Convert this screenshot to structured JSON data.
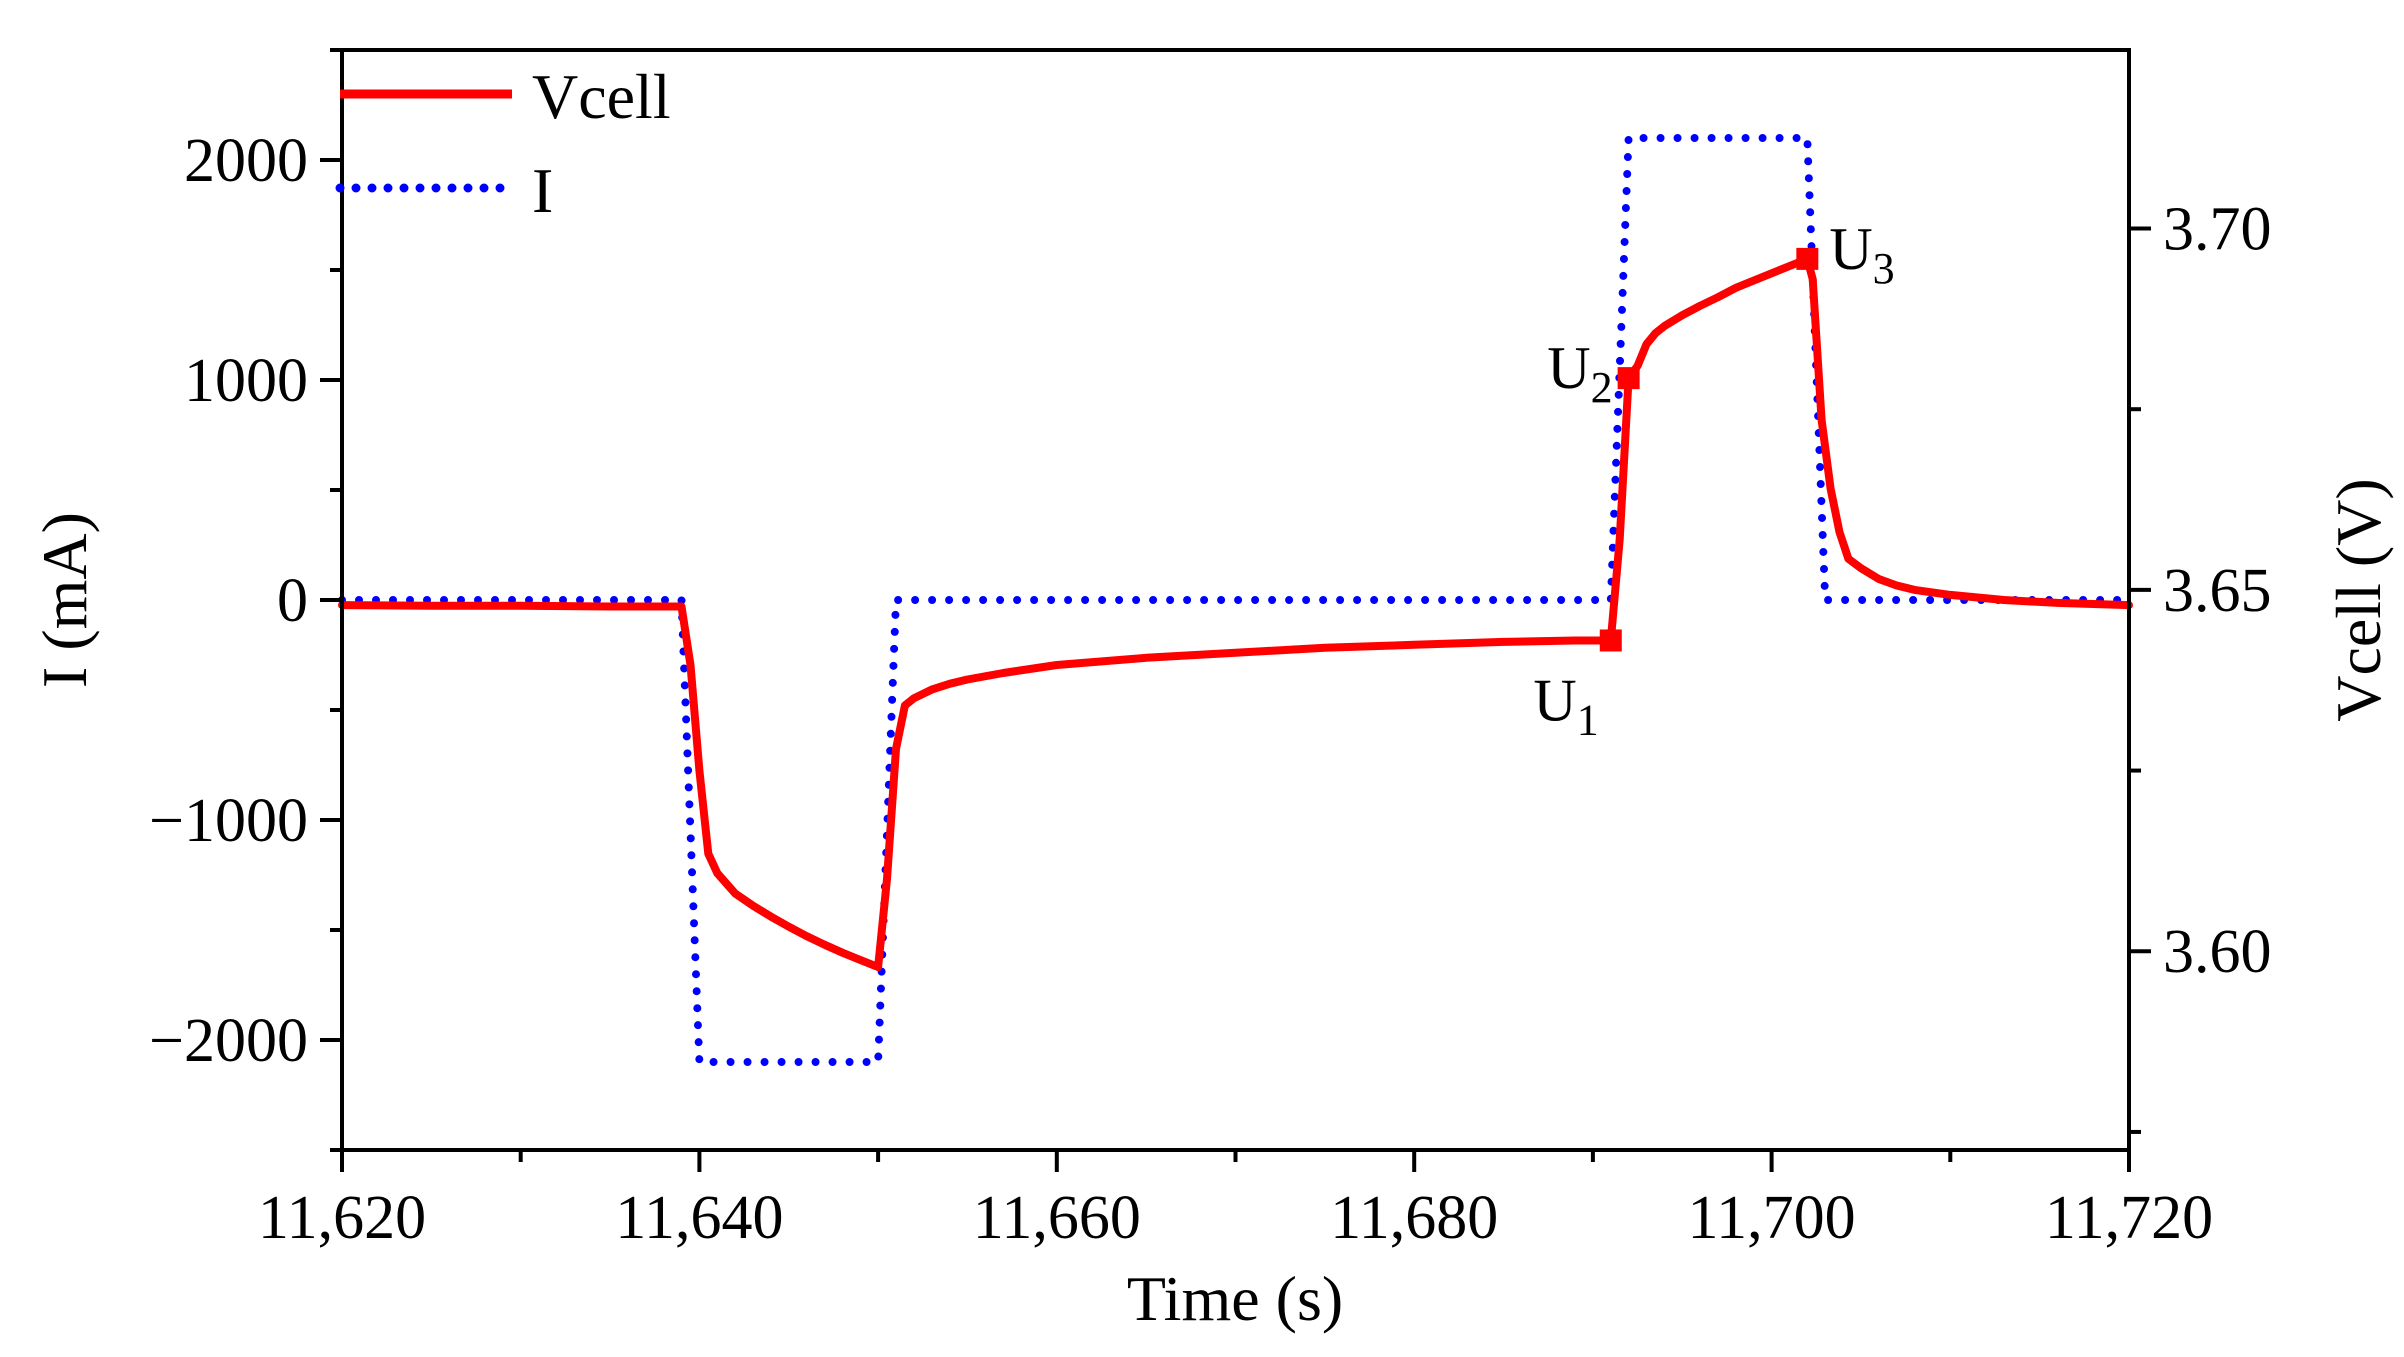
{
  "chart_data": {
    "type": "line",
    "title": "",
    "xlabel": "Time (s)",
    "ylabel_left": "I (mA)",
    "ylabel_right": "Vcell (V)",
    "xlim": [
      11620,
      11720
    ],
    "ylim_left": [
      -2500,
      2500
    ],
    "ylim_right": [
      3.5725,
      3.7247
    ],
    "x_ticks": [
      11620,
      11640,
      11660,
      11680,
      11700,
      11720
    ],
    "x_tick_labels": [
      "11,620",
      "11,640",
      "11,660",
      "11,680",
      "11,700",
      "11,720"
    ],
    "y_left_ticks": [
      2000,
      1000,
      0,
      -1000,
      -2000
    ],
    "y_left_tick_labels": [
      "2000",
      "1000",
      "0",
      "−1000",
      "−2000"
    ],
    "y_right_ticks": [
      3.7,
      3.65,
      3.6
    ],
    "y_right_tick_labels": [
      "3.70",
      "3.65",
      "3.60"
    ],
    "legend_position": "top-left",
    "grid": false,
    "series": [
      {
        "name": "Vcell",
        "axis": "right",
        "style": "solid",
        "color": "#ff0000",
        "x": [
          11620,
          11625,
          11630,
          11635,
          11639,
          11639.5,
          11640,
          11640.5,
          11641,
          11642,
          11643,
          11644,
          11645,
          11646,
          11647,
          11648,
          11649,
          11650,
          11650.5,
          11651,
          11651.5,
          11652,
          11653,
          11654,
          11655,
          11657,
          11660,
          11665,
          11670,
          11675,
          11680,
          11685,
          11689,
          11691,
          11691.5,
          11692,
          11692.5,
          11693,
          11693.5,
          11694,
          11695,
          11696,
          11697,
          11698,
          11699,
          11700,
          11701,
          11702,
          11702.3,
          11702.8,
          11703.3,
          11703.8,
          11704.3,
          11705,
          11706,
          11707,
          11708,
          11710,
          11713,
          11716,
          11720
        ],
        "y": [
          3.6479,
          3.6478,
          3.6478,
          3.6477,
          3.6477,
          3.6396,
          3.625,
          3.6135,
          3.6108,
          3.608,
          3.6063,
          3.6048,
          3.6034,
          3.6021,
          3.6009,
          3.5998,
          3.5988,
          3.5978,
          3.61,
          3.628,
          3.634,
          3.635,
          3.6362,
          3.637,
          3.6376,
          3.6385,
          3.6396,
          3.6406,
          3.6413,
          3.642,
          3.6424,
          3.6428,
          3.643,
          3.643,
          3.657,
          3.6793,
          3.681,
          3.684,
          3.6855,
          3.6865,
          3.688,
          3.6893,
          3.6905,
          3.6918,
          3.6928,
          3.6938,
          3.6948,
          3.6958,
          3.693,
          3.6735,
          3.664,
          3.658,
          3.6543,
          3.653,
          3.6515,
          3.6506,
          3.65,
          3.6493,
          3.6486,
          3.6482,
          3.6479
        ]
      },
      {
        "name": "I",
        "axis": "left",
        "style": "dotted",
        "color": "#0000ff",
        "x": [
          11620,
          11639,
          11640,
          11650,
          11651,
          11691,
          11692,
          11702,
          11703,
          11720
        ],
        "y": [
          0,
          0,
          -2100,
          -2100,
          0,
          0,
          2100,
          2100,
          0,
          0
        ]
      }
    ],
    "markers": [
      {
        "label": "U",
        "sub": "1",
        "x": 11691,
        "v": 3.643
      },
      {
        "label": "U",
        "sub": "2",
        "x": 11692,
        "v": 3.6793
      },
      {
        "label": "U",
        "sub": "3",
        "x": 11702,
        "v": 3.6958
      }
    ]
  }
}
